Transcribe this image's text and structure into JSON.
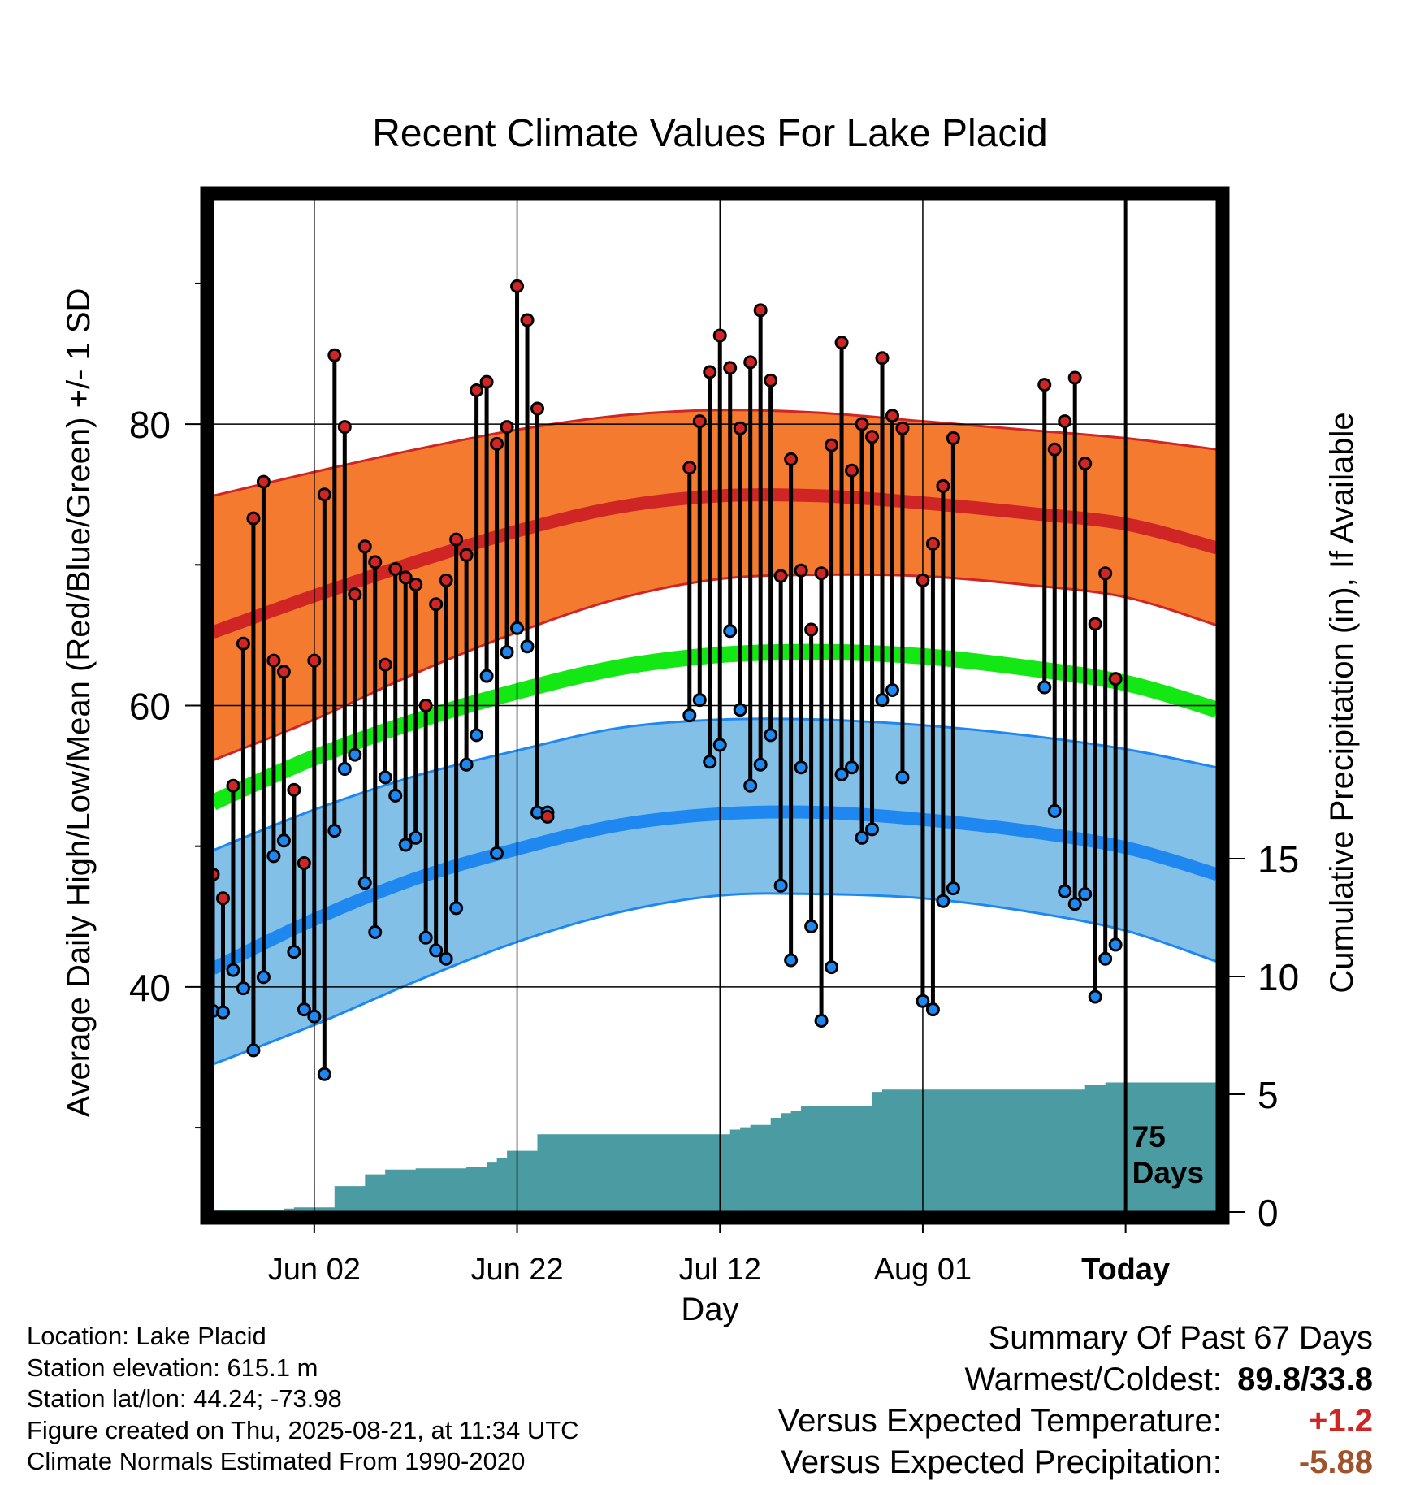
{
  "colors": {
    "high_band": "#F47A30",
    "high_line": "#D02525",
    "low_band": "#82C0E8",
    "low_line": "#1E88F0",
    "mean_line": "#14E814",
    "precip_fill": "#4A9BA2",
    "high_dot": "#D02525",
    "low_dot": "#1E88F0",
    "temp_anomaly": "#D02525",
    "precip_anomaly": "#A0522D"
  },
  "chart_data": {
    "type": "line",
    "title": "Recent Climate Values For Lake Placid",
    "xlabel": "Day",
    "ylabel": "Average Daily High/Low/Mean (Red/Blue/Green) +/- 1 SD",
    "y2label": "Cumulative Precipitation (in), If Available",
    "x_range": [
      "2025-05-23",
      "2025-08-30"
    ],
    "ylim": [
      24,
      96
    ],
    "y2lim": [
      0,
      43
    ],
    "x_ticks": [
      {
        "date": "2025-06-02",
        "label": "Jun 02"
      },
      {
        "date": "2025-06-22",
        "label": "Jun 22"
      },
      {
        "date": "2025-07-12",
        "label": "Jul 12"
      },
      {
        "date": "2025-08-01",
        "label": "Aug 01"
      },
      {
        "date": "2025-08-21",
        "label": "Today",
        "bold": true
      }
    ],
    "y_ticks": [
      {
        "value": 40,
        "label": "40"
      },
      {
        "value": 60,
        "label": "60"
      },
      {
        "value": 80,
        "label": "80"
      }
    ],
    "y_minor_ticks": [
      30,
      50,
      70,
      90
    ],
    "y2_ticks": [
      {
        "value": 0,
        "label": "0"
      },
      {
        "value": 5,
        "label": "5"
      },
      {
        "value": 10,
        "label": "10"
      },
      {
        "value": 15,
        "label": "15"
      }
    ],
    "grid": true,
    "today": "2025-08-21",
    "today_label": [
      "75",
      "Days"
    ],
    "normals": {
      "dates": [
        "2025-05-23",
        "2025-06-02",
        "2025-06-12",
        "2025-06-22",
        "2025-07-02",
        "2025-07-12",
        "2025-07-22",
        "2025-08-01",
        "2025-08-11",
        "2025-08-21",
        "2025-08-30"
      ],
      "high_mean": [
        65.2,
        67.8,
        70.2,
        72.4,
        74.1,
        74.9,
        74.9,
        74.4,
        73.7,
        72.9,
        71.2
      ],
      "high_upper": [
        74.9,
        76.6,
        78.2,
        79.6,
        80.6,
        81.0,
        80.8,
        80.2,
        79.6,
        79.0,
        78.2
      ],
      "high_lower": [
        56.1,
        59.0,
        62.3,
        65.2,
        67.6,
        69.0,
        69.3,
        69.2,
        68.6,
        67.7,
        65.7
      ],
      "mean": [
        53.1,
        56.3,
        58.9,
        61.0,
        62.7,
        63.6,
        63.8,
        63.5,
        62.7,
        61.6,
        59.7
      ],
      "low_mean": [
        41.3,
        44.8,
        47.7,
        49.8,
        51.5,
        52.3,
        52.4,
        51.9,
        51.1,
        49.9,
        48.0
      ],
      "low_upper": [
        49.7,
        52.6,
        55.0,
        56.8,
        58.4,
        59.0,
        59.0,
        58.6,
        57.9,
        56.9,
        55.6
      ],
      "low_lower": [
        34.5,
        37.3,
        40.4,
        43.2,
        45.3,
        46.5,
        46.6,
        46.3,
        45.4,
        44.0,
        41.8
      ]
    },
    "series": [
      {
        "name": "High",
        "x": [
          "2025-05-23",
          "2025-05-24",
          "2025-05-25",
          "2025-05-26",
          "2025-05-27",
          "2025-05-28",
          "2025-05-29",
          "2025-05-30",
          "2025-05-31",
          "2025-06-01",
          "2025-06-02",
          "2025-06-03",
          "2025-06-04",
          "2025-06-05",
          "2025-06-06",
          "2025-06-07",
          "2025-06-08",
          "2025-06-09",
          "2025-06-10",
          "2025-06-11",
          "2025-06-12",
          "2025-06-13",
          "2025-06-14",
          "2025-06-15",
          "2025-06-16",
          "2025-06-17",
          "2025-06-18",
          "2025-06-19",
          "2025-06-20",
          "2025-06-21",
          "2025-06-22",
          "2025-06-23",
          "2025-06-24",
          "2025-06-25",
          "2025-07-09",
          "2025-07-10",
          "2025-07-11",
          "2025-07-12",
          "2025-07-13",
          "2025-07-14",
          "2025-07-15",
          "2025-07-16",
          "2025-07-17",
          "2025-07-18",
          "2025-07-19",
          "2025-07-20",
          "2025-07-21",
          "2025-07-22",
          "2025-07-23",
          "2025-07-24",
          "2025-07-25",
          "2025-07-26",
          "2025-07-27",
          "2025-07-28",
          "2025-07-29",
          "2025-07-30",
          "2025-08-01",
          "2025-08-02",
          "2025-08-03",
          "2025-08-04",
          "2025-08-13",
          "2025-08-14",
          "2025-08-15",
          "2025-08-16",
          "2025-08-17",
          "2025-08-18",
          "2025-08-19",
          "2025-08-20"
        ],
        "values": [
          48.0,
          46.3,
          54.3,
          64.4,
          73.3,
          75.9,
          63.2,
          62.4,
          54.0,
          48.8,
          63.2,
          75.0,
          84.9,
          79.8,
          67.9,
          71.3,
          70.2,
          62.9,
          69.7,
          69.1,
          68.6,
          60.0,
          67.2,
          68.9,
          71.8,
          70.7,
          82.4,
          83.0,
          78.6,
          79.8,
          89.8,
          87.4,
          81.1,
          52.1,
          76.9,
          80.2,
          83.7,
          86.3,
          84.0,
          79.7,
          84.4,
          88.1,
          83.1,
          69.2,
          77.5,
          69.6,
          65.4,
          69.4,
          78.5,
          85.8,
          76.7,
          80.0,
          79.1,
          84.7,
          80.6,
          79.7,
          68.9,
          71.5,
          75.6,
          79.0,
          82.8,
          78.2,
          80.2,
          83.3,
          77.2,
          65.8,
          69.4,
          61.9
        ]
      },
      {
        "name": "Low",
        "x": [
          "2025-05-23",
          "2025-05-24",
          "2025-05-25",
          "2025-05-26",
          "2025-05-27",
          "2025-05-28",
          "2025-05-29",
          "2025-05-30",
          "2025-05-31",
          "2025-06-01",
          "2025-06-02",
          "2025-06-03",
          "2025-06-04",
          "2025-06-05",
          "2025-06-06",
          "2025-06-07",
          "2025-06-08",
          "2025-06-09",
          "2025-06-10",
          "2025-06-11",
          "2025-06-12",
          "2025-06-13",
          "2025-06-14",
          "2025-06-15",
          "2025-06-16",
          "2025-06-17",
          "2025-06-18",
          "2025-06-19",
          "2025-06-20",
          "2025-06-21",
          "2025-06-22",
          "2025-06-23",
          "2025-06-24",
          "2025-06-25",
          "2025-07-09",
          "2025-07-10",
          "2025-07-11",
          "2025-07-12",
          "2025-07-13",
          "2025-07-14",
          "2025-07-15",
          "2025-07-16",
          "2025-07-17",
          "2025-07-18",
          "2025-07-19",
          "2025-07-20",
          "2025-07-21",
          "2025-07-22",
          "2025-07-23",
          "2025-07-24",
          "2025-07-25",
          "2025-07-26",
          "2025-07-27",
          "2025-07-28",
          "2025-07-29",
          "2025-07-30",
          "2025-08-01",
          "2025-08-02",
          "2025-08-03",
          "2025-08-04",
          "2025-08-13",
          "2025-08-14",
          "2025-08-15",
          "2025-08-16",
          "2025-08-17",
          "2025-08-18",
          "2025-08-19",
          "2025-08-20"
        ],
        "values": [
          38.3,
          38.2,
          41.2,
          39.9,
          35.5,
          40.7,
          49.3,
          50.4,
          42.5,
          38.4,
          37.9,
          33.8,
          51.1,
          55.5,
          56.5,
          47.4,
          43.9,
          54.9,
          53.6,
          50.1,
          50.6,
          43.5,
          42.6,
          42.0,
          45.6,
          55.8,
          57.9,
          62.1,
          49.5,
          63.8,
          65.5,
          64.2,
          52.4,
          52.4,
          59.3,
          60.4,
          56.0,
          57.2,
          65.3,
          59.7,
          54.3,
          55.8,
          57.9,
          47.2,
          41.9,
          55.6,
          44.3,
          37.6,
          41.4,
          55.1,
          55.6,
          50.6,
          51.2,
          60.4,
          61.1,
          54.9,
          39.0,
          38.4,
          46.1,
          47.0,
          61.3,
          52.5,
          46.8,
          45.9,
          46.6,
          39.3,
          42.0,
          43.0
        ]
      }
    ],
    "precipitation": {
      "x": [
        "2025-05-23",
        "2025-05-29",
        "2025-05-30",
        "2025-05-31",
        "2025-06-04",
        "2025-06-05",
        "2025-06-07",
        "2025-06-08",
        "2025-06-09",
        "2025-06-12",
        "2025-06-17",
        "2025-06-19",
        "2025-06-20",
        "2025-06-21",
        "2025-06-24",
        "2025-07-11",
        "2025-07-13",
        "2025-07-14",
        "2025-07-15",
        "2025-07-17",
        "2025-07-18",
        "2025-07-19",
        "2025-07-20",
        "2025-07-21",
        "2025-07-26",
        "2025-07-27",
        "2025-07-28",
        "2025-08-01",
        "2025-08-13",
        "2025-08-17",
        "2025-08-19",
        "2025-08-20",
        "2025-08-30"
      ],
      "values": [
        0.1,
        0.1,
        0.15,
        0.2,
        1.1,
        1.1,
        1.6,
        1.6,
        1.8,
        1.85,
        1.9,
        2.1,
        2.3,
        2.6,
        3.3,
        3.3,
        3.5,
        3.6,
        3.7,
        4.0,
        4.2,
        4.3,
        4.5,
        4.5,
        4.5,
        5.1,
        5.2,
        5.2,
        5.2,
        5.4,
        5.5,
        5.5,
        5.5
      ]
    }
  },
  "info": {
    "location": "Location: Lake Placid",
    "elevation": "Station elevation: 615.1 m",
    "latlon": "Station lat/lon: 44.24; -73.98",
    "created": "Figure created on Thu, 2025-08-21, at 11:34 UTC",
    "normals": "Climate Normals Estimated From 1990-2020"
  },
  "summary": {
    "heading": "Summary Of Past 67 Days",
    "warmest_label": "Warmest/Coldest:",
    "warmest_value": "89.8/33.8",
    "temp_label": "Versus Expected Temperature:",
    "temp_value": "+1.2",
    "precip_label": "Versus Expected Precipitation:",
    "precip_value": "-5.88"
  }
}
